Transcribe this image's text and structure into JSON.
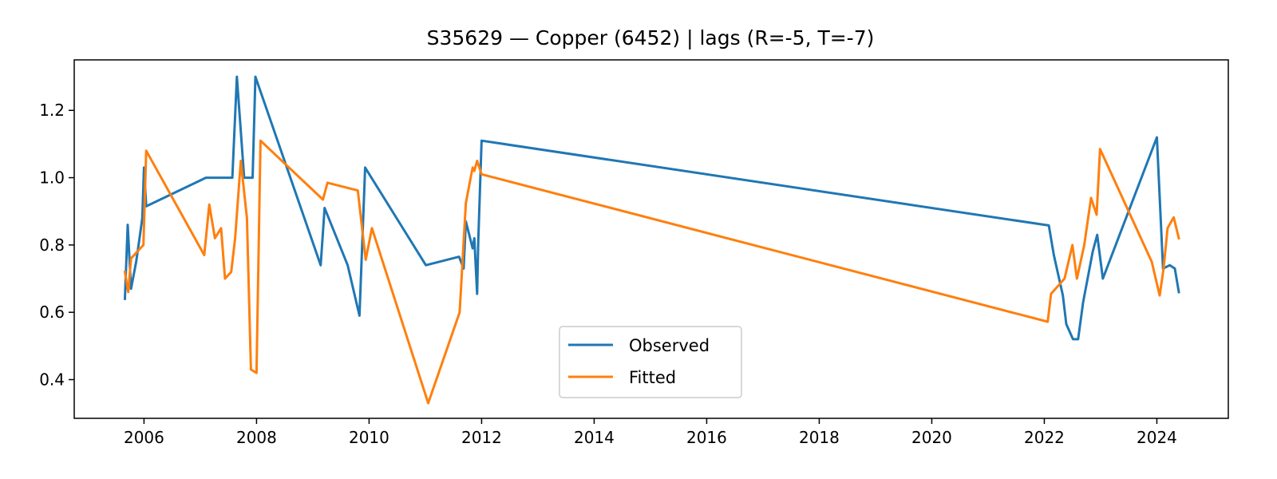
{
  "chart_data": {
    "type": "line",
    "title": "S35629 — Copper (6452) | lags (R=-5, T=-7)",
    "xlabel": "",
    "ylabel": "",
    "xlim": [
      2004.76,
      2025.27
    ],
    "ylim": [
      0.285,
      1.35
    ],
    "xticks": [
      2006,
      2008,
      2010,
      2012,
      2014,
      2016,
      2018,
      2020,
      2022,
      2024
    ],
    "yticks": [
      0.4,
      0.6,
      0.8,
      1.0,
      1.2
    ],
    "ytick_labels": [
      "0.4",
      "0.6",
      "0.8",
      "1.0",
      "1.2"
    ],
    "grid": false,
    "legend": "lower-center",
    "series": [
      {
        "name": "Observed",
        "color": "#1f77b4",
        "points": [
          [
            2005.66,
            0.64
          ],
          [
            2005.71,
            0.86
          ],
          [
            2005.77,
            0.67
          ],
          [
            2005.86,
            0.75
          ],
          [
            2005.92,
            0.82
          ],
          [
            2005.97,
            0.88
          ],
          [
            2006.0,
            1.03
          ],
          [
            2006.04,
            0.915
          ],
          [
            2007.1,
            1.0
          ],
          [
            2007.57,
            1.0
          ],
          [
            2007.65,
            1.3
          ],
          [
            2007.78,
            1.0
          ],
          [
            2007.93,
            1.0
          ],
          [
            2007.98,
            1.3
          ],
          [
            2009.14,
            0.74
          ],
          [
            2009.21,
            0.91
          ],
          [
            2009.62,
            0.74
          ],
          [
            2009.83,
            0.59
          ],
          [
            2009.93,
            1.03
          ],
          [
            2011.01,
            0.74
          ],
          [
            2011.6,
            0.765
          ],
          [
            2011.68,
            0.73
          ],
          [
            2011.72,
            0.87
          ],
          [
            2011.84,
            0.79
          ],
          [
            2011.87,
            0.82
          ],
          [
            2011.92,
            0.655
          ],
          [
            2011.94,
            0.81
          ],
          [
            2012.0,
            1.11
          ],
          [
            2022.08,
            0.858
          ],
          [
            2022.17,
            0.77
          ],
          [
            2022.33,
            0.65
          ],
          [
            2022.39,
            0.565
          ],
          [
            2022.51,
            0.52
          ],
          [
            2022.6,
            0.52
          ],
          [
            2022.69,
            0.63
          ],
          [
            2022.86,
            0.78
          ],
          [
            2022.94,
            0.83
          ],
          [
            2023.04,
            0.7
          ],
          [
            2024.0,
            1.12
          ],
          [
            2024.11,
            0.73
          ],
          [
            2024.23,
            0.74
          ],
          [
            2024.32,
            0.73
          ],
          [
            2024.39,
            0.66
          ]
        ]
      },
      {
        "name": "Fitted",
        "color": "#ff7f0e",
        "points": [
          [
            2005.66,
            0.72
          ],
          [
            2005.72,
            0.66
          ],
          [
            2005.77,
            0.76
          ],
          [
            2005.99,
            0.8
          ],
          [
            2006.04,
            1.08
          ],
          [
            2007.07,
            0.77
          ],
          [
            2007.16,
            0.92
          ],
          [
            2007.26,
            0.82
          ],
          [
            2007.37,
            0.85
          ],
          [
            2007.44,
            0.7
          ],
          [
            2007.55,
            0.72
          ],
          [
            2007.62,
            0.82
          ],
          [
            2007.72,
            1.05
          ],
          [
            2007.83,
            0.88
          ],
          [
            2007.9,
            0.43
          ],
          [
            2008.0,
            0.42
          ],
          [
            2008.07,
            1.11
          ],
          [
            2009.18,
            0.935
          ],
          [
            2009.26,
            0.985
          ],
          [
            2009.8,
            0.962
          ],
          [
            2009.94,
            0.756
          ],
          [
            2010.05,
            0.85
          ],
          [
            2011.05,
            0.33
          ],
          [
            2011.61,
            0.6
          ],
          [
            2011.72,
            0.925
          ],
          [
            2011.84,
            1.03
          ],
          [
            2011.87,
            1.02
          ],
          [
            2011.92,
            1.05
          ],
          [
            2012.0,
            1.01
          ],
          [
            2022.06,
            0.572
          ],
          [
            2022.12,
            0.655
          ],
          [
            2022.36,
            0.7
          ],
          [
            2022.5,
            0.8
          ],
          [
            2022.58,
            0.7
          ],
          [
            2022.71,
            0.8
          ],
          [
            2022.83,
            0.94
          ],
          [
            2022.93,
            0.89
          ],
          [
            2022.99,
            1.085
          ],
          [
            2023.91,
            0.75
          ],
          [
            2024.05,
            0.65
          ],
          [
            2024.12,
            0.73
          ],
          [
            2024.19,
            0.85
          ],
          [
            2024.3,
            0.882
          ],
          [
            2024.39,
            0.82
          ]
        ]
      }
    ]
  }
}
